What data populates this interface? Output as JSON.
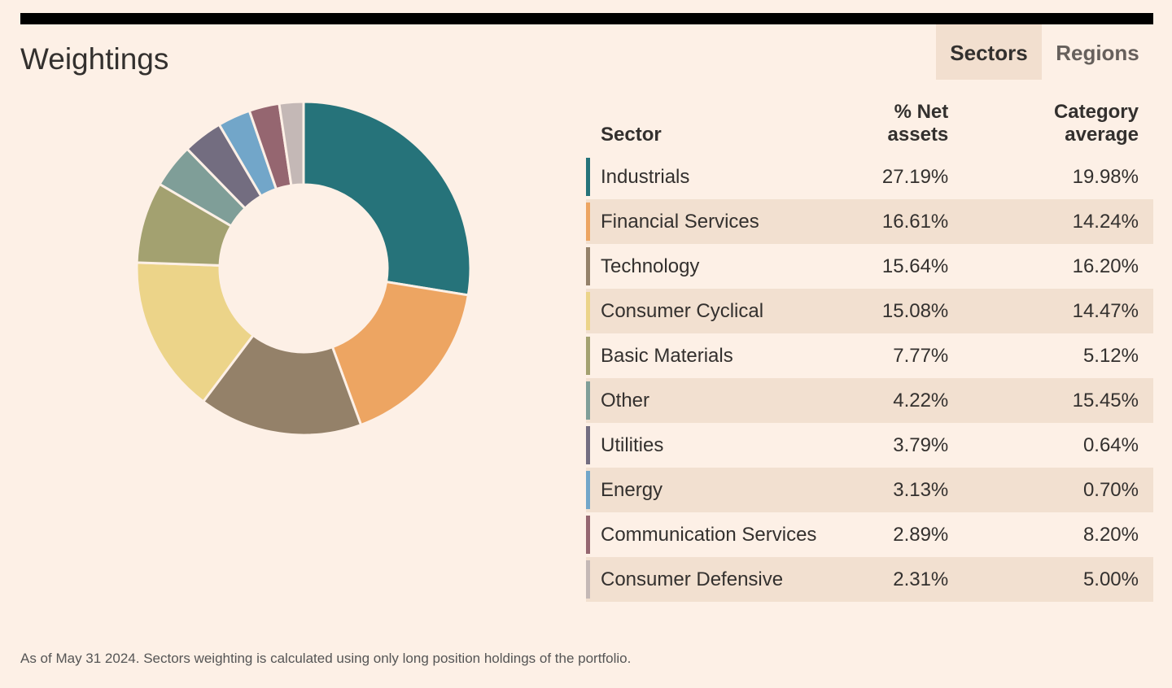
{
  "title": "Weightings",
  "tabs": [
    "Sectors",
    "Regions"
  ],
  "chart_data": {
    "type": "donut",
    "categories": [
      "Industrials",
      "Financial Services",
      "Technology",
      "Consumer Cyclical",
      "Basic Materials",
      "Other",
      "Utilities",
      "Energy",
      "Communication Services",
      "Consumer Defensive"
    ],
    "values": [
      27.19,
      16.61,
      15.64,
      15.08,
      7.77,
      4.22,
      3.79,
      3.13,
      2.89,
      2.31
    ],
    "value_labels": [
      "27.19%",
      "16.61%",
      "15.64%",
      "15.08%",
      "7.77%",
      "4.22%",
      "3.79%",
      "3.13%",
      "2.89%",
      "2.31%"
    ],
    "colors": [
      "#26737a",
      "#eda562",
      "#948169",
      "#ecd489",
      "#a3a170",
      "#7f9e98",
      "#736d80",
      "#72a6c9",
      "#956670",
      "#c4b8b6"
    ]
  },
  "table": {
    "headers": [
      "Sector",
      "% Net assets",
      "Category average"
    ],
    "category_average": {
      "values": [
        19.98,
        14.24,
        16.2,
        14.47,
        5.12,
        15.45,
        0.64,
        0.7,
        8.2,
        5.0
      ],
      "value_labels": [
        "19.98%",
        "14.24%",
        "16.20%",
        "14.47%",
        "5.12%",
        "15.45%",
        "0.64%",
        "0.70%",
        "8.20%",
        "5.00%"
      ]
    }
  },
  "footnote": "As of May 31 2024. Sectors weighting is calculated using only long position holdings of the portfolio."
}
